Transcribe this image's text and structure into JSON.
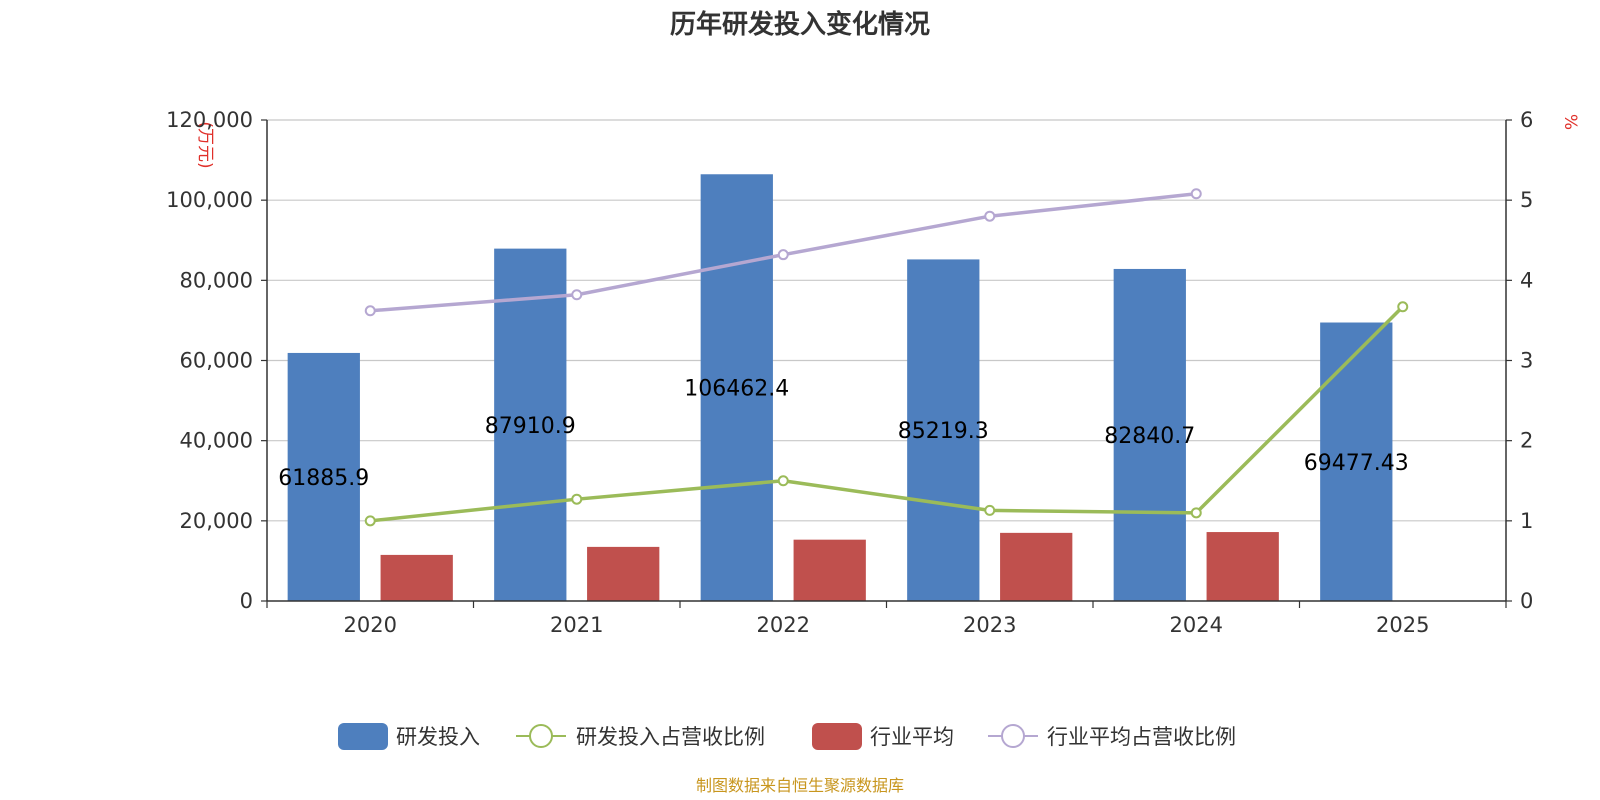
{
  "chart_data": {
    "type": "bar",
    "title": "历年研发投入变化情况",
    "categories": [
      "2020",
      "2021",
      "2022",
      "2023",
      "2024",
      "2025"
    ],
    "y_left": {
      "unit": "(万元)",
      "range": [
        0,
        120000
      ],
      "ticks": [
        0,
        20000,
        40000,
        60000,
        80000,
        100000,
        120000
      ],
      "tick_labels": [
        "0",
        "20,000",
        "40,000",
        "60,000",
        "80,000",
        "100,000",
        "120,000"
      ]
    },
    "y_right": {
      "unit": "%",
      "range": [
        0,
        6
      ],
      "ticks": [
        0,
        1,
        2,
        3,
        4,
        5,
        6
      ],
      "tick_labels": [
        "0",
        "1",
        "2",
        "3",
        "4",
        "5",
        "6"
      ]
    },
    "series": [
      {
        "name": "研发投入",
        "kind": "bar",
        "axis": "left",
        "color": "#4e7fbe",
        "values": [
          61885.9,
          87910.9,
          106462.4,
          85219.3,
          82840.7,
          69477.43
        ],
        "labels": [
          "61885.9",
          "87910.9",
          "106462.4",
          "85219.3",
          "82840.7",
          "69477.43"
        ]
      },
      {
        "name": "研发投入占营收比例",
        "kind": "line",
        "axis": "right",
        "color": "#9bbb59",
        "values": [
          1.0,
          1.27,
          1.5,
          1.13,
          1.1,
          3.67
        ]
      },
      {
        "name": "行业平均",
        "kind": "bar",
        "axis": "left",
        "color": "#c0504d",
        "values": [
          11500,
          13500,
          15300,
          17000,
          17200,
          null
        ]
      },
      {
        "name": "行业平均占营收比例",
        "kind": "line",
        "axis": "right",
        "color": "#b5a7d1",
        "values": [
          3.62,
          3.82,
          4.32,
          4.8,
          5.08,
          null
        ]
      }
    ],
    "legend_position": "bottom-center",
    "grid": true
  },
  "source_note": "制图数据来自恒生聚源数据库"
}
